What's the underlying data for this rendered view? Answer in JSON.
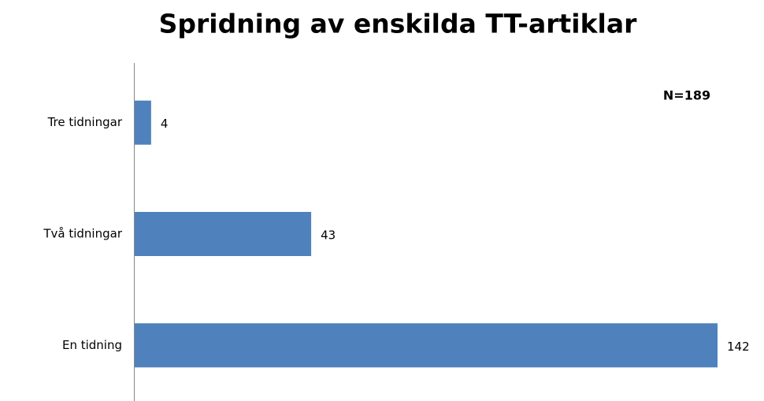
{
  "chart_data": {
    "type": "bar",
    "orientation": "horizontal",
    "title": "Spridning av enskilda TT-artiklar",
    "annotation": "N=189",
    "categories": [
      "Tre tidningar",
      "Två tidningar",
      "En tidning"
    ],
    "values": [
      4,
      43,
      142
    ],
    "color": "#4f81bd"
  }
}
